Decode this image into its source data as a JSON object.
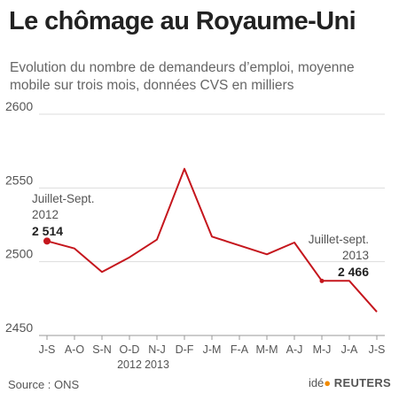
{
  "title": "Le chômage au Royaume-Uni",
  "subtitle": "Evolution du nombre de demandeurs d’emploi, moyenne mobile sur trois mois, données CVS en milliers",
  "source": "Source : ONS",
  "logo": {
    "ide": "idé",
    "reuters": "REUTERS"
  },
  "colors": {
    "line": "#c5161d",
    "axis": "#999999",
    "grid": "#dddddd",
    "text": "#555555",
    "bold": "#222222"
  },
  "chart_data": {
    "type": "line",
    "categories": [
      "J-S",
      "A-O",
      "S-N",
      "O-D",
      "N-J",
      "D-F",
      "J-M",
      "F-A",
      "M-M",
      "A-J",
      "M-J",
      "J-A",
      "J-S"
    ],
    "year_labels": [
      {
        "index": 3,
        "text": "2012"
      },
      {
        "index": 4,
        "text": "2013"
      }
    ],
    "values": [
      2514,
      2509,
      2493,
      2503,
      2515,
      2563,
      2517,
      2511,
      2505,
      2513,
      2487,
      2487,
      2466
    ],
    "ylim": [
      2450,
      2600
    ],
    "yticks": [
      2450,
      2500,
      2550,
      2600
    ],
    "grid": true,
    "xlabel": "",
    "ylabel": "",
    "annotations": [
      {
        "index": 0,
        "lines": [
          "Juillet-Sept.",
          "2012"
        ],
        "value_label": "2 514",
        "marker": true
      },
      {
        "index": 12,
        "lines": [
          "Juillet-sept.",
          "2013"
        ],
        "value_label": "2 466",
        "marker": false
      }
    ],
    "extra_markers": [
      10
    ]
  }
}
